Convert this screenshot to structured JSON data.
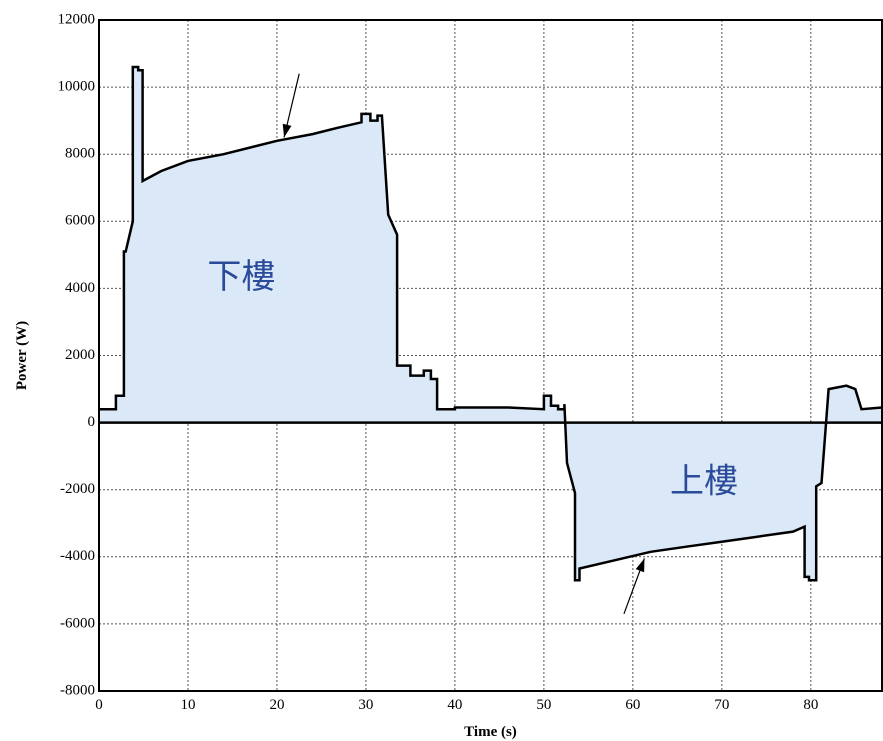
{
  "chart_data": {
    "type": "line",
    "title": "",
    "xlabel": "Time (s)",
    "ylabel": "Power (W)",
    "xlim": [
      0,
      88
    ],
    "ylim": [
      -8000,
      12000
    ],
    "x_ticks": [
      0,
      10,
      20,
      30,
      40,
      50,
      60,
      70,
      80
    ],
    "y_ticks": [
      -8000,
      -6000,
      -4000,
      -2000,
      0,
      2000,
      4000,
      6000,
      8000,
      10000,
      12000
    ],
    "grid": true,
    "fill_to_zero": true,
    "colors": {
      "line": "#000000",
      "fill": "#dbe8f7",
      "annotation_text": "#2a4a9a"
    },
    "series": [
      {
        "x": [
          0,
          1.9,
          1.9,
          2.8,
          2.8,
          3.0,
          3.8,
          3.8,
          4.4,
          4.4,
          4.9,
          4.9,
          7,
          10,
          14,
          17,
          20,
          24,
          27,
          29.5,
          29.5,
          30.5,
          30.5,
          31.3,
          31.3,
          31.8,
          32.5,
          32.5,
          33.5,
          33.5,
          35,
          35,
          36.5,
          36.5,
          37.3,
          37.3,
          38.0,
          38.0,
          40,
          40,
          46,
          50,
          50,
          50.8,
          50.8,
          51.6,
          51.6,
          52.3,
          52.3,
          52.6,
          53.5,
          53.5,
          54,
          54,
          58,
          62,
          66,
          70,
          74,
          78,
          79.3,
          79.3,
          79.8,
          79.8,
          80.6,
          80.6,
          81.2,
          82,
          82,
          84,
          84,
          85,
          85,
          85.7,
          85.7,
          88
        ],
        "y": [
          400,
          400,
          800,
          800,
          5100,
          5100,
          6000,
          10600,
          10600,
          10500,
          10500,
          7200,
          7500,
          7800,
          8000,
          8200,
          8400,
          8600,
          8800,
          8950,
          9200,
          9200,
          9000,
          9000,
          9150,
          9150,
          6200,
          6200,
          5600,
          1700,
          1700,
          1400,
          1400,
          1550,
          1550,
          1300,
          1300,
          400,
          400,
          450,
          450,
          400,
          800,
          800,
          500,
          500,
          400,
          400,
          550,
          -1200,
          -2100,
          -4700,
          -4700,
          -4350,
          -4100,
          -3850,
          -3700,
          -3550,
          -3400,
          -3250,
          -3100,
          -4600,
          -4600,
          -4700,
          -4700,
          -1900,
          -1800,
          1000,
          1000,
          1100,
          1100,
          1000,
          1000,
          400,
          400,
          450
        ]
      }
    ],
    "annotations": [
      {
        "text": "下樓",
        "x": 16,
        "y": 4300
      },
      {
        "text": "上樓",
        "x": 68,
        "y": -1800
      }
    ],
    "arrows": [
      {
        "from": [
          22.5,
          10400
        ],
        "to": [
          20.8,
          8500
        ]
      },
      {
        "from": [
          59.0,
          -5700
        ],
        "to": [
          61.3,
          -4050
        ]
      }
    ]
  }
}
